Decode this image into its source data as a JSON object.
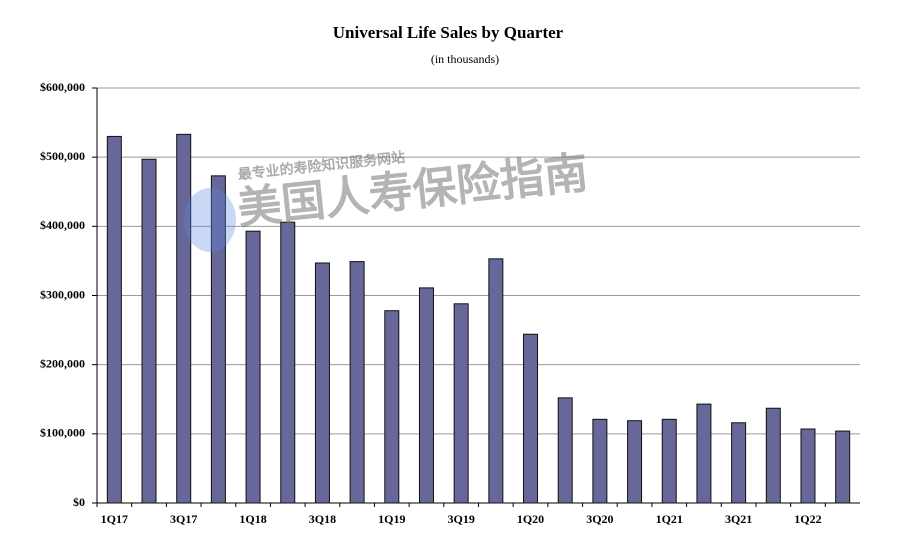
{
  "chart_data": {
    "type": "bar",
    "title": "Universal Life Sales by Quarter",
    "subtitle": "(in thousands)",
    "categories": [
      "1Q17",
      null,
      "3Q17",
      null,
      "1Q18",
      null,
      "3Q18",
      null,
      "1Q19",
      null,
      "3Q19",
      null,
      "1Q20",
      null,
      "3Q20",
      null,
      "1Q21",
      null,
      "3Q21",
      null,
      "1Q22",
      null
    ],
    "values": [
      530000,
      497000,
      533000,
      473000,
      393000,
      406000,
      347000,
      349000,
      278000,
      311000,
      288000,
      353000,
      244000,
      152000,
      121000,
      119000,
      121000,
      143000,
      116000,
      137000,
      107000,
      104000
    ],
    "color": "#67679a",
    "ylim": [
      0,
      600000
    ],
    "yticks": [
      {
        "value": 0,
        "label": "$0"
      },
      {
        "value": 100000,
        "label": "$100,000"
      },
      {
        "value": 200000,
        "label": "$200,000"
      },
      {
        "value": 300000,
        "label": "$300,000"
      },
      {
        "value": 400000,
        "label": "$400,000"
      },
      {
        "value": 500000,
        "label": "$500,000"
      },
      {
        "value": 600000,
        "label": "$600,000"
      }
    ],
    "grid": true
  },
  "watermark": {
    "title": "美国人寿保险指南",
    "tagline": "最专业的寿险知识服务网站"
  }
}
